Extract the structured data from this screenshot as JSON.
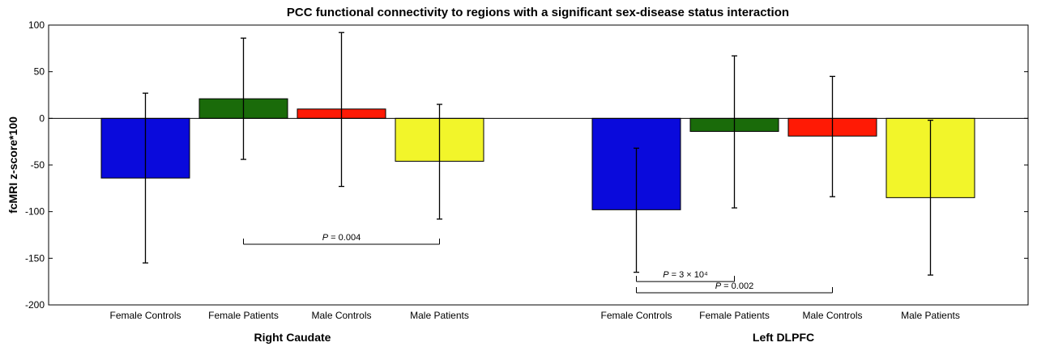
{
  "chart_data": {
    "type": "bar",
    "title": "PCC functional connectivity to regions with a significant sex-disease status interaction",
    "ylabel": "fcMRI z-score*100",
    "xlabel": "",
    "ylim": [
      -200,
      100
    ],
    "yticks": [
      -200,
      -150,
      -100,
      -50,
      0,
      50,
      100
    ],
    "grid": false,
    "groups": [
      {
        "name": "Right Caudate",
        "bars": [
          {
            "category": "Female Controls",
            "value": -64,
            "err_low": -155,
            "err_high": 27,
            "color": "#0a0adc"
          },
          {
            "category": "Female Patients",
            "value": 21,
            "err_low": -44,
            "err_high": 86,
            "color": "#1a6b0a"
          },
          {
            "category": "Male Controls",
            "value": 10,
            "err_low": -73,
            "err_high": 92,
            "color": "#ff1a05"
          },
          {
            "category": "Male Patients",
            "value": -46,
            "err_low": -108,
            "err_high": 15,
            "color": "#f2f52a"
          }
        ],
        "comparisons": [
          {
            "from": 1,
            "to": 3,
            "label_p": "P",
            "label_rest": " = 0.004",
            "level": -135
          }
        ]
      },
      {
        "name": "Left DLPFC",
        "bars": [
          {
            "category": "Female Controls",
            "value": -98,
            "err_low": -165,
            "err_high": -32,
            "color": "#0a0adc"
          },
          {
            "category": "Female Patients",
            "value": -14,
            "err_low": -96,
            "err_high": 67,
            "color": "#1a6b0a"
          },
          {
            "category": "Male Controls",
            "value": -19,
            "err_low": -84,
            "err_high": 45,
            "color": "#ff1a05"
          },
          {
            "category": "Male Patients",
            "value": -85,
            "err_low": -168,
            "err_high": -2,
            "color": "#f2f52a"
          }
        ],
        "comparisons": [
          {
            "from": 0,
            "to": 1,
            "label_p": "P",
            "label_rest": " = 3 × 10⁴",
            "level": -175
          },
          {
            "from": 0,
            "to": 2,
            "label_p": "P",
            "label_rest": " = 0.002",
            "level": -187
          }
        ]
      }
    ]
  }
}
